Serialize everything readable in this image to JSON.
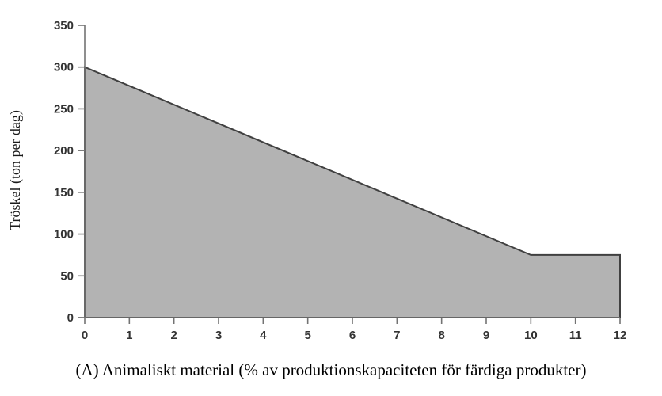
{
  "chart_data": {
    "type": "area",
    "title": "",
    "xlabel": "(A) Animaliskt material (% av produktionskapaciteten för färdiga produkter)",
    "ylabel": "Tröskel (ton per dag)",
    "xlim": [
      0,
      12
    ],
    "ylim": [
      0,
      350
    ],
    "xticks": [
      0,
      1,
      2,
      3,
      4,
      5,
      6,
      7,
      8,
      9,
      10,
      11,
      12
    ],
    "yticks": [
      0,
      50,
      100,
      150,
      200,
      250,
      300,
      350
    ],
    "series": [
      {
        "name": "Tröskel (ton per dag)",
        "points": [
          {
            "x": 0,
            "y": 300
          },
          {
            "x": 10,
            "y": 75
          },
          {
            "x": 12,
            "y": 75
          }
        ]
      }
    ],
    "description": "Area falls linearly from 300 ton per dag at 0% to 75 ton per dag at 10%, then stays constant at 75 up to 12%",
    "fill_color": "#b3b3b3",
    "line_color": "#404040",
    "axis_color": "#737373",
    "tick_label_color": "#333333",
    "grid": false,
    "legend_position": "none"
  }
}
